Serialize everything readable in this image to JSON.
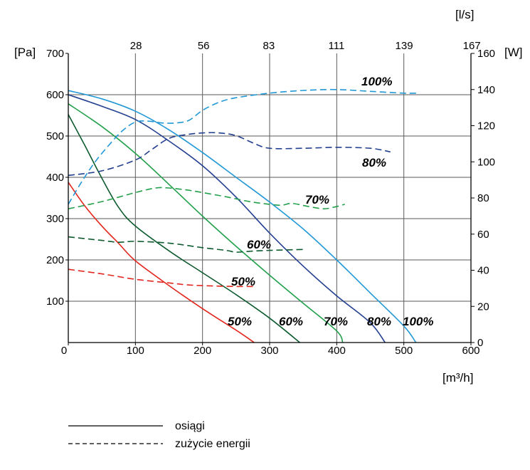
{
  "chart_data": {
    "type": "line",
    "x_label": "[m³/h]",
    "x_top_label": "[l/s]",
    "y_left_label": "[Pa]",
    "y_right_label": "[W]",
    "xlim": [
      0,
      600
    ],
    "x_ticks": [
      0,
      100,
      200,
      300,
      400,
      500,
      600
    ],
    "x_top_ticks": [
      "28",
      "56",
      "83",
      "111",
      "139",
      "167"
    ],
    "ylim_left": [
      0,
      700
    ],
    "y_left_ticks": [
      100,
      200,
      300,
      400,
      500,
      600,
      700
    ],
    "ylim_right": [
      0,
      160
    ],
    "y_right_ticks": [
      0,
      20,
      40,
      60,
      80,
      100,
      120,
      140,
      160
    ],
    "grid": true,
    "legend": {
      "position": "bottom-left",
      "items": [
        {
          "label": "osiągi",
          "line": "solid"
        },
        {
          "label": "zużycie energii",
          "line": "dashed"
        }
      ]
    },
    "series": [
      {
        "name": "100%",
        "line": "solid",
        "axis": "left",
        "color": "#2298d6",
        "x": [
          0,
          50,
          100,
          150,
          200,
          250,
          300,
          350,
          400,
          450,
          500,
          518
        ],
        "y": [
          610,
          590,
          560,
          515,
          460,
          400,
          340,
          275,
          200,
          120,
          40,
          0
        ]
      },
      {
        "name": "80%",
        "line": "solid",
        "axis": "left",
        "color": "#233f8f",
        "x": [
          0,
          50,
          100,
          150,
          200,
          250,
          300,
          350,
          400,
          450,
          472
        ],
        "y": [
          600,
          572,
          540,
          488,
          428,
          352,
          265,
          185,
          113,
          48,
          0
        ]
      },
      {
        "name": "70%",
        "line": "solid",
        "axis": "left",
        "color": "#23a04b",
        "x": [
          0,
          50,
          100,
          150,
          200,
          250,
          300,
          350,
          400,
          409
        ],
        "y": [
          578,
          523,
          458,
          383,
          306,
          233,
          163,
          95,
          28,
          0
        ]
      },
      {
        "name": "60%",
        "line": "solid",
        "axis": "left",
        "color": "#0d5b2e",
        "x": [
          0,
          25,
          50,
          75,
          100,
          150,
          200,
          250,
          300,
          345
        ],
        "y": [
          552,
          476,
          398,
          327,
          282,
          222,
          169,
          116,
          59,
          0
        ]
      },
      {
        "name": "50%",
        "line": "solid",
        "axis": "left",
        "color": "#e2261d",
        "x": [
          0,
          25,
          50,
          75,
          100,
          150,
          200,
          250,
          277
        ],
        "y": [
          388,
          330,
          282,
          240,
          198,
          138,
          82,
          30,
          0
        ]
      },
      {
        "name": "100%",
        "line": "dashed",
        "axis": "right",
        "color": "#2298d6",
        "x": [
          0,
          20,
          40,
          60,
          80,
          100,
          120,
          140,
          160,
          180,
          200,
          225,
          250,
          300,
          350,
          400,
          450,
          500,
          520
        ],
        "y": [
          76.5,
          89,
          100,
          109,
          117,
          122,
          122.5,
          121.5,
          121.5,
          123,
          128.5,
          133,
          135.5,
          138,
          139.5,
          140,
          139,
          138,
          138
        ]
      },
      {
        "name": "80%",
        "line": "dashed",
        "axis": "right",
        "color": "#233f8f",
        "x": [
          0,
          50,
          100,
          125,
          150,
          175,
          200,
          225,
          250,
          275,
          300,
          350,
          400,
          450,
          480
        ],
        "y": [
          92.5,
          95,
          101,
          107,
          113,
          115,
          116,
          116,
          114.5,
          110.5,
          107.5,
          107.5,
          108,
          107.5,
          105.5
        ]
      },
      {
        "name": "70%",
        "line": "dashed",
        "axis": "right",
        "color": "#23a04b",
        "x": [
          0,
          50,
          100,
          130,
          150,
          175,
          200,
          237,
          270,
          300,
          318,
          333,
          355,
          380,
          397,
          412
        ],
        "y": [
          74,
          78,
          83,
          85.5,
          85.5,
          84.5,
          83,
          80.5,
          78,
          76.5,
          76,
          77,
          75.5,
          74,
          75,
          76.5
        ]
      },
      {
        "name": "60%",
        "line": "dashed",
        "axis": "right",
        "color": "#0d5b2e",
        "x": [
          0,
          50,
          75,
          100,
          150,
          200,
          235,
          250,
          270,
          300,
          350
        ],
        "y": [
          58.5,
          56.5,
          55.5,
          56,
          55,
          52.5,
          51,
          50,
          50.5,
          51,
          51.5
        ]
      },
      {
        "name": "50%",
        "line": "dashed",
        "axis": "right",
        "color": "#e2261d",
        "x": [
          0,
          50,
          100,
          150,
          175,
          200,
          250,
          280
        ],
        "y": [
          40.5,
          38,
          35,
          33,
          32,
          31.5,
          31,
          31
        ]
      }
    ]
  }
}
